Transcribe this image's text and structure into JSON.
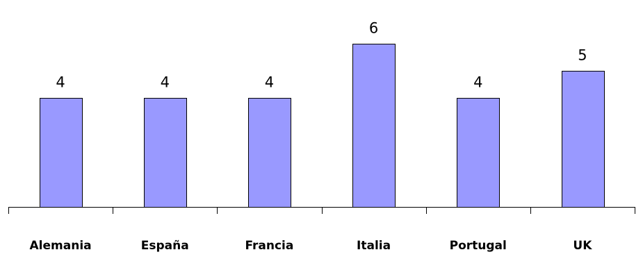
{
  "chart_data": {
    "type": "bar",
    "title": "",
    "xlabel": "",
    "ylabel": "",
    "categories": [
      "Alemania",
      "España",
      "Francia",
      "Italia",
      "Portugal",
      "UK"
    ],
    "values": [
      4,
      4,
      4,
      6,
      4,
      5
    ],
    "data_labels": [
      "4",
      "4",
      "4",
      "6",
      "4",
      "5"
    ],
    "ylim": [
      0,
      7.4
    ],
    "grid": false,
    "legend": "none",
    "bar_color": "#9999ff",
    "bar_border_color": "#000000",
    "axis_color": "#000000"
  }
}
